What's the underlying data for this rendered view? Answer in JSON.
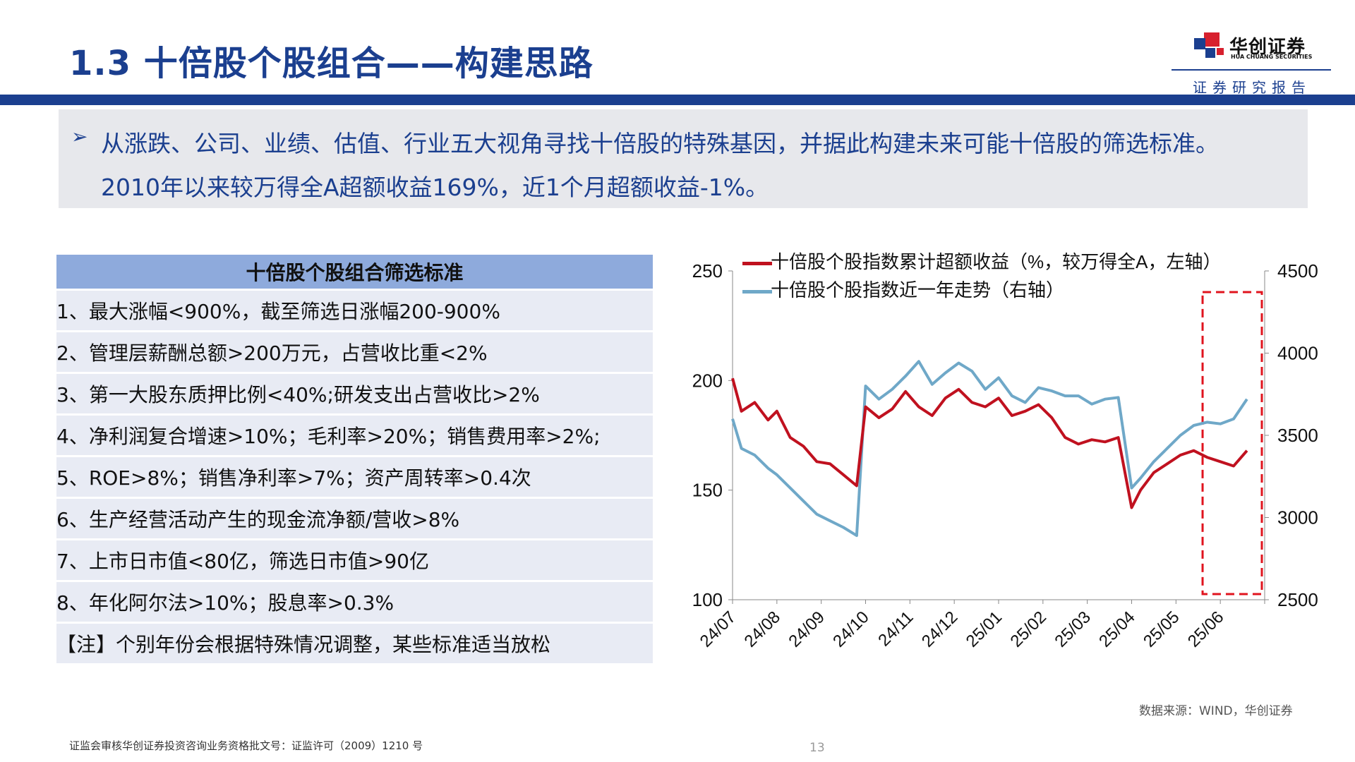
{
  "slide": {
    "title": "1.3 十倍股个股组合——构建思路",
    "page_number": "13"
  },
  "logo": {
    "name_cn": "华创证券",
    "name_en": "HUA CHUANG SECURITIES",
    "subtitle": "证券研究报告",
    "colors": {
      "red": "#d7202e",
      "blue": "#1b3f8f"
    }
  },
  "summary": {
    "bullet_icon": "arrow-bullet-icon",
    "line1": "从涨跌、公司、业绩、估值、行业五大视角寻找十倍股的特殊基因，并据此构建未来可能十倍股的筛选标准。",
    "line2": "2010年以来较万得全A超额收益169%，近1个月超额收益-1%。"
  },
  "criteria": {
    "header": "十倍股个股组合筛选标准",
    "rows": [
      "1、最大涨幅<900%，截至筛选日涨幅200-900%",
      "2、管理层薪酬总额>200万元，占营收比重<2%",
      "3、第一大股东质押比例<40%;研发支出占营收比>2%",
      "4、净利润复合增速>10%；毛利率>20%；销售费用率>2%;",
      "5、ROE>8%；销售净利率>7%；资产周转率>0.4次",
      "6、生产经营活动产生的现金流净额/营收>8%",
      "7、上市日市值<80亿，筛选日市值>90亿",
      "8、年化阿尔法>10%；股息率>0.3%",
      "【注】个别年份会根据特殊情况调整，某些标准适当放松"
    ]
  },
  "chart_data": {
    "type": "line",
    "title": "",
    "x_ticks": [
      "24/07",
      "24/08",
      "24/09",
      "24/10",
      "24/11",
      "24/12",
      "25/01",
      "25/02",
      "25/03",
      "25/04",
      "25/05",
      "25/06"
    ],
    "left_axis": {
      "min": 100,
      "max": 250,
      "ticks": [
        "100",
        "150",
        "200",
        "250"
      ]
    },
    "right_axis": {
      "min": 2500,
      "max": 4500,
      "ticks": [
        "2500",
        "3000",
        "3500",
        "4000",
        "4500"
      ]
    },
    "grid": false,
    "legend_position": "top",
    "highlight_box": "recent-month",
    "series": [
      {
        "name": "十倍股个股指数累计超额收益（%，较万得全A，左轴）",
        "axis": "left",
        "color": "#c0111f",
        "x": [
          0.0,
          0.2,
          0.5,
          0.8,
          1.0,
          1.3,
          1.6,
          1.9,
          2.2,
          2.5,
          2.8,
          3.0,
          3.3,
          3.6,
          3.9,
          4.2,
          4.5,
          4.8,
          5.1,
          5.4,
          5.7,
          6.0,
          6.3,
          6.6,
          6.9,
          7.2,
          7.5,
          7.8,
          8.1,
          8.4,
          8.7,
          9.0,
          9.2,
          9.5,
          9.8,
          10.1,
          10.4,
          10.7,
          11.0,
          11.3,
          11.6
        ],
        "values": [
          201,
          186,
          190,
          182,
          186,
          174,
          170,
          163,
          162,
          157,
          152,
          188,
          183,
          187,
          195,
          188,
          184,
          192,
          196,
          190,
          188,
          192,
          184,
          186,
          189,
          183,
          174,
          171,
          173,
          172,
          174,
          142,
          150,
          158,
          162,
          166,
          168,
          165,
          163,
          161,
          168
        ]
      },
      {
        "name": "十倍股个股指数近一年走势（右轴）",
        "axis": "right",
        "color": "#6fa8c8",
        "x": [
          0.0,
          0.2,
          0.5,
          0.8,
          1.0,
          1.3,
          1.6,
          1.9,
          2.2,
          2.5,
          2.8,
          3.0,
          3.3,
          3.6,
          3.9,
          4.2,
          4.5,
          4.8,
          5.1,
          5.4,
          5.7,
          6.0,
          6.3,
          6.6,
          6.9,
          7.2,
          7.5,
          7.8,
          8.1,
          8.4,
          8.7,
          9.0,
          9.2,
          9.5,
          9.8,
          10.1,
          10.4,
          10.7,
          11.0,
          11.3,
          11.6
        ],
        "values": [
          3600,
          3420,
          3380,
          3300,
          3260,
          3180,
          3100,
          3020,
          2980,
          2940,
          2890,
          3800,
          3720,
          3780,
          3860,
          3950,
          3810,
          3880,
          3940,
          3890,
          3780,
          3850,
          3740,
          3700,
          3790,
          3770,
          3740,
          3740,
          3690,
          3720,
          3730,
          3180,
          3240,
          3340,
          3420,
          3500,
          3560,
          3580,
          3570,
          3600,
          3720
        ]
      }
    ]
  },
  "footer": {
    "source": "数据来源：WIND，华创证券",
    "license": "证监会审核华创证券投资咨询业务资格批文号：证监许可（2009）1210 号"
  }
}
